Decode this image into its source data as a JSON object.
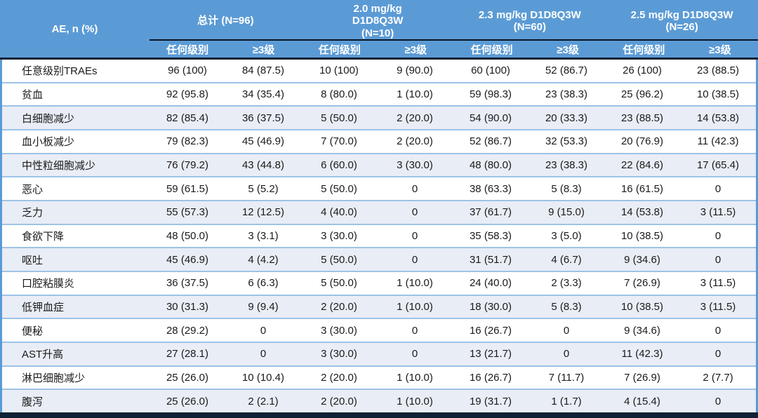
{
  "chart_data": {
    "type": "table",
    "corner_label": "AE, n (%)",
    "groups": [
      {
        "label": "总计 (N=96)"
      },
      {
        "label": "2.0 mg/kg\nD1D8Q3W\n(N=10)"
      },
      {
        "label": "2.3 mg/kg D1D8Q3W\n(N=60)"
      },
      {
        "label": "2.5 mg/kg D1D8Q3W\n(N=26)"
      }
    ],
    "subheaders": [
      "任何级别",
      "≥3级",
      "任何级别",
      "≥3级",
      "任何级别",
      "≥3级",
      "任何级别",
      "≥3级"
    ],
    "rows": [
      {
        "label": "任意级别TRAEs",
        "values": [
          "96 (100)",
          "84 (87.5)",
          "10 (100)",
          "9 (90.0)",
          "60 (100)",
          "52 (86.7)",
          "26 (100)",
          "23 (88.5)"
        ]
      },
      {
        "label": "贫血",
        "values": [
          "92 (95.8)",
          "34 (35.4)",
          "8 (80.0)",
          "1 (10.0)",
          "59 (98.3)",
          "23 (38.3)",
          "25 (96.2)",
          "10 (38.5)"
        ]
      },
      {
        "label": "白细胞减少",
        "values": [
          "82 (85.4)",
          "36 (37.5)",
          "5 (50.0)",
          "2 (20.0)",
          "54 (90.0)",
          "20 (33.3)",
          "23 (88.5)",
          "14 (53.8)"
        ]
      },
      {
        "label": "血小板减少",
        "values": [
          "79 (82.3)",
          "45 (46.9)",
          "7 (70.0)",
          "2 (20.0)",
          "52 (86.7)",
          "32 (53.3)",
          "20 (76.9)",
          "11 (42.3)"
        ]
      },
      {
        "label": "中性粒细胞减少",
        "values": [
          "76 (79.2)",
          "43 (44.8)",
          "6 (60.0)",
          "3 (30.0)",
          "48 (80.0)",
          "23 (38.3)",
          "22 (84.6)",
          "17 (65.4)"
        ]
      },
      {
        "label": "恶心",
        "values": [
          "59 (61.5)",
          "5 (5.2)",
          "5 (50.0)",
          "0",
          "38 (63.3)",
          "5 (8.3)",
          "16 (61.5)",
          "0"
        ]
      },
      {
        "label": "乏力",
        "values": [
          "55 (57.3)",
          "12 (12.5)",
          "4 (40.0)",
          "0",
          "37 (61.7)",
          "9 (15.0)",
          "14 (53.8)",
          "3 (11.5)"
        ]
      },
      {
        "label": "食欲下降",
        "values": [
          "48 (50.0)",
          "3 (3.1)",
          "3 (30.0)",
          "0",
          "35 (58.3)",
          "3 (5.0)",
          "10 (38.5)",
          "0"
        ]
      },
      {
        "label": "呕吐",
        "values": [
          "45 (46.9)",
          "4 (4.2)",
          "5 (50.0)",
          "0",
          "31 (51.7)",
          "4 (6.7)",
          "9 (34.6)",
          "0"
        ]
      },
      {
        "label": "口腔粘膜炎",
        "values": [
          "36 (37.5)",
          "6 (6.3)",
          "5 (50.0)",
          "1 (10.0)",
          "24 (40.0)",
          "2 (3.3)",
          "7 (26.9)",
          "3 (11.5)"
        ]
      },
      {
        "label": "低钾血症",
        "values": [
          "30 (31.3)",
          "9 (9.4)",
          "2 (20.0)",
          "1 (10.0)",
          "18 (30.0)",
          "5 (8.3)",
          "10 (38.5)",
          "3 (11.5)"
        ]
      },
      {
        "label": "便秘",
        "values": [
          "28 (29.2)",
          "0",
          "3 (30.0)",
          "0",
          "16 (26.7)",
          "0",
          "9 (34.6)",
          "0"
        ]
      },
      {
        "label": "AST升高",
        "values": [
          "27 (28.1)",
          "0",
          "3 (30.0)",
          "0",
          "13 (21.7)",
          "0",
          "11 (42.3)",
          "0"
        ]
      },
      {
        "label": "淋巴细胞减少",
        "values": [
          "25 (26.0)",
          "10 (10.4)",
          "2 (20.0)",
          "1 (10.0)",
          "16 (26.7)",
          "7 (11.7)",
          "7 (26.9)",
          "2 (7.7)"
        ]
      },
      {
        "label": "腹泻",
        "values": [
          "25 (26.0)",
          "2 (2.1)",
          "2 (20.0)",
          "1 (10.0)",
          "19 (31.7)",
          "1 (1.7)",
          "4 (15.4)",
          "0"
        ]
      }
    ]
  },
  "colors": {
    "header_blue": "#5B9BD5",
    "band_blue": "#E9EDF6",
    "row_divider": "#9DC3E6",
    "dark_navy": "#0F2132",
    "header_text": "#FFFFFF",
    "body_text": "#1A1A1A"
  }
}
